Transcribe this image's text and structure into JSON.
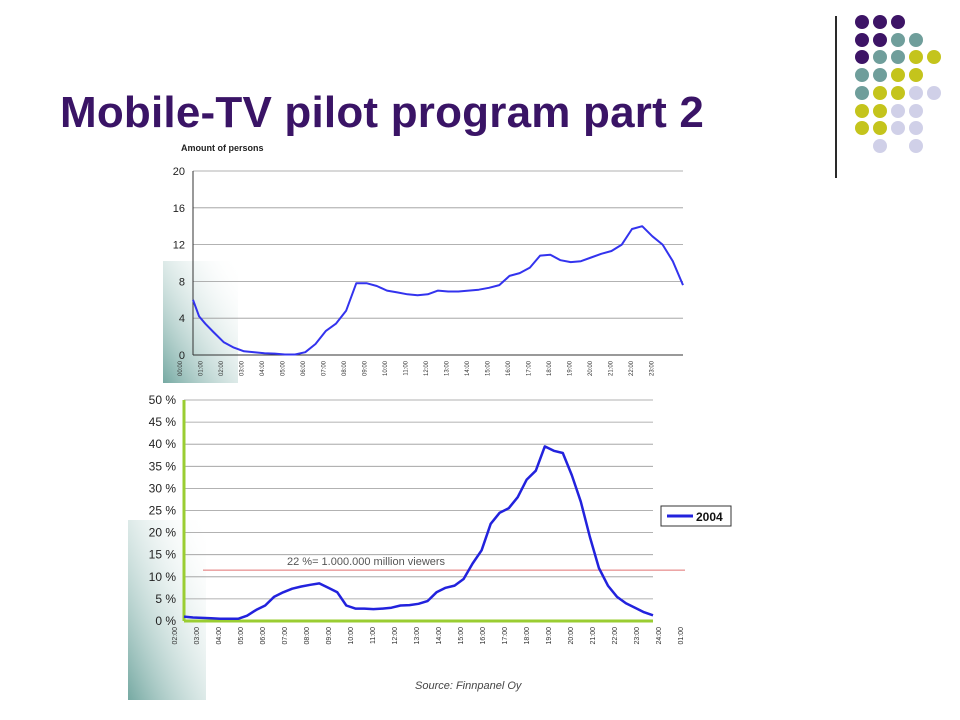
{
  "slide": {
    "title": "Mobile-TV pilot program part 2",
    "palette": {
      "purple": "#3d1466",
      "teal": "#6f9e9b",
      "olive": "#c4c41c",
      "lavender": "#d0d0e8",
      "line_blue": "#3333ee"
    }
  },
  "chart_data": [
    {
      "type": "line",
      "ylabel": "Amount of persons",
      "ylim": [
        0,
        20
      ],
      "yticks": [
        "0",
        "4",
        "8",
        "12",
        "16",
        "20"
      ],
      "xticks": [
        "00:00",
        "01:00",
        "02:00",
        "03:00",
        "04:00",
        "05:00",
        "06:00",
        "07:00",
        "08:00",
        "09:00",
        "10:00",
        "11:00",
        "12:00",
        "13:00",
        "14:00",
        "15:00",
        "16:00",
        "17:00",
        "18:00",
        "19:00",
        "20:00",
        "21:00",
        "22:00",
        "23:00"
      ],
      "grid": true,
      "series": [
        {
          "color": "#3333ee",
          "x": [
            0,
            0.3,
            0.6,
            1,
            1.5,
            2,
            2.5,
            3,
            3.5,
            4,
            4.5,
            5,
            5.5,
            6,
            6.5,
            7,
            7.5,
            8,
            8.5,
            9,
            9.5,
            10,
            10.5,
            11,
            11.5,
            12,
            12.5,
            13,
            13.5,
            14,
            14.5,
            15,
            15.5,
            16,
            16.5,
            17,
            17.5,
            18,
            18.5,
            19,
            19.5,
            20,
            20.5,
            21,
            21.5,
            22,
            22.5,
            23,
            23.5,
            24
          ],
          "y": [
            6,
            4.2,
            3.4,
            2.5,
            1.4,
            0.8,
            0.4,
            0.3,
            0.2,
            0.15,
            0.05,
            0.05,
            0.3,
            1.2,
            2.6,
            3.4,
            4.8,
            7.8,
            7.8,
            7.5,
            7,
            6.8,
            6.6,
            6.5,
            6.6,
            7,
            6.9,
            6.9,
            7,
            7.1,
            7.3,
            7.6,
            8.6,
            8.9,
            9.5,
            10.8,
            10.9,
            10.3,
            10.1,
            10.2,
            10.6,
            11,
            11.3,
            12,
            13.7,
            14,
            12.9,
            12,
            10.2,
            7.6
          ]
        }
      ]
    },
    {
      "type": "line",
      "ylim": [
        0,
        50
      ],
      "yticks": [
        "0 %",
        "5 %",
        "10 %",
        "15 %",
        "20 %",
        "25 %",
        "30 %",
        "35 %",
        "40 %",
        "45 %",
        "50 %"
      ],
      "xticks": [
        "02:00",
        "03:00",
        "04:00",
        "05:00",
        "06:00",
        "07:00",
        "08:00",
        "09:00",
        "10:00",
        "11:00",
        "12:00",
        "13:00",
        "14:00",
        "15:00",
        "16:00",
        "17:00",
        "18:00",
        "19:00",
        "20:00",
        "21:00",
        "22:00",
        "23:00",
        "24:00",
        "01:00"
      ],
      "grid": true,
      "legend_position": "right",
      "annotation": "22 %=  1.000.000 million viewers",
      "reference_line": {
        "y": 11.5,
        "color": "#e07070"
      },
      "source": "Source: Finnpanel Oy",
      "series": [
        {
          "name": "2004",
          "color": "#2222dd",
          "x": [
            0,
            0.5,
            1,
            1.5,
            2,
            2.5,
            3,
            3.5,
            4,
            4.5,
            5,
            5.5,
            6,
            6.5,
            7,
            7.5,
            8,
            8.5,
            9,
            9.5,
            10,
            10.5,
            11,
            11.5,
            12,
            12.5,
            13,
            13.5,
            14,
            14.5,
            15,
            15.5,
            16,
            16.5,
            17,
            17.5,
            18,
            18.5,
            19,
            19.5,
            20,
            20.5,
            21,
            21.5,
            22,
            22.5,
            23,
            23.5,
            24,
            24.5,
            25,
            25.5,
            26
          ],
          "y": [
            1,
            0.8,
            0.7,
            0.6,
            0.5,
            0.5,
            0.5,
            1.2,
            2.5,
            3.5,
            5.5,
            6.5,
            7.3,
            7.8,
            8.2,
            8.5,
            7.5,
            6.5,
            3.5,
            2.8,
            2.8,
            2.7,
            2.8,
            3.0,
            3.5,
            3.6,
            3.9,
            4.5,
            6.5,
            7.5,
            8,
            9.5,
            13,
            16,
            22,
            24.5,
            25.5,
            28,
            32,
            34,
            39.5,
            38.5,
            38,
            33,
            27,
            19,
            12,
            8,
            5.5,
            4,
            3,
            2,
            1.3
          ]
        }
      ]
    }
  ]
}
